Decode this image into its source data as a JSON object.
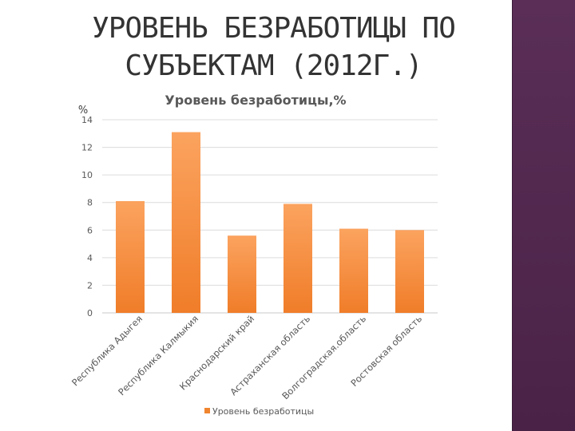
{
  "slide": {
    "title_line1": "УРОВЕНЬ БЕЗРАБОТИЦЫ ПО",
    "title_line2": "СУБЪЕКТАМ (2012Г.)"
  },
  "colors": {
    "bar_top": "#fba35f",
    "bar_bottom": "#f07d29",
    "grid": "#dcdcdc",
    "text": "#595959",
    "title": "#333333",
    "sidebar": "#52284f"
  },
  "chart_data": {
    "type": "bar",
    "title": "Уровень безработицы,%",
    "ylabel": "%",
    "xlabel": "",
    "ylim": [
      0,
      14
    ],
    "yticks": [
      0,
      2,
      4,
      6,
      8,
      10,
      12,
      14
    ],
    "grid": true,
    "legend_position": "bottom",
    "categories": [
      "Республика Адыгея",
      "Республика Калмыкия",
      "Краснодарский край",
      "Астраханская область",
      "Волгоградская.область",
      "Ростовская область"
    ],
    "series": [
      {
        "name": "Уровень безработицы",
        "values": [
          8.1,
          13.1,
          5.6,
          7.9,
          6.1,
          6.0
        ]
      }
    ]
  }
}
